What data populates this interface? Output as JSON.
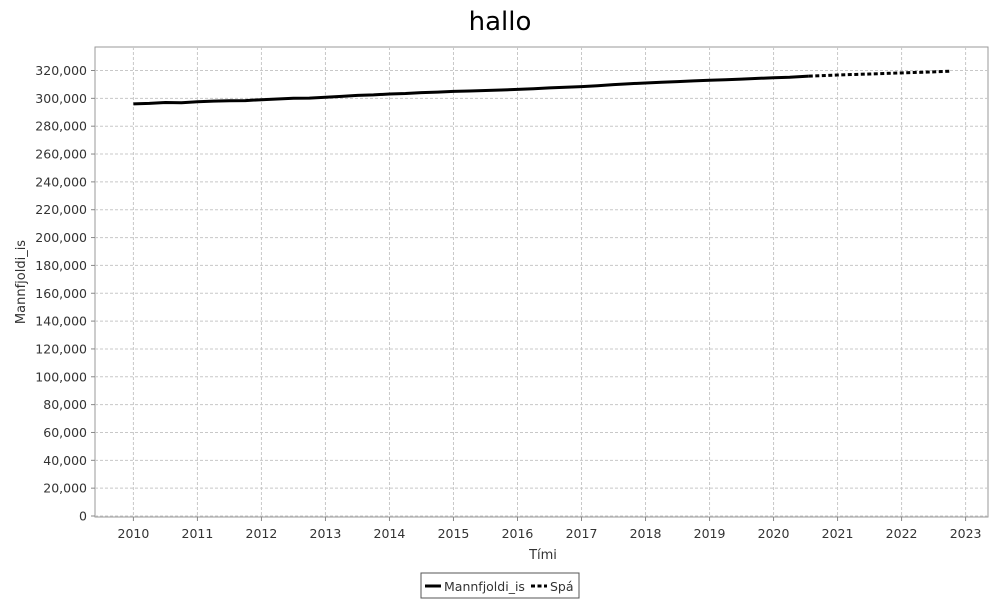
{
  "chart_data": {
    "type": "line",
    "title": "hallo",
    "xlabel": "Tími",
    "ylabel": "Mannfjoldi_is",
    "xlim": [
      2009.4,
      2023.35
    ],
    "ylim": [
      0,
      330000
    ],
    "x_ticks": [
      "2010",
      "2011",
      "2012",
      "2013",
      "2014",
      "2015",
      "2016",
      "2017",
      "2018",
      "2019",
      "2020",
      "2021",
      "2022",
      "2023"
    ],
    "y_ticks": [
      "0",
      "20,000",
      "40,000",
      "60,000",
      "80,000",
      "100,000",
      "120,000",
      "140,000",
      "160,000",
      "180,000",
      "200,000",
      "220,000",
      "240,000",
      "260,000",
      "280,000",
      "300,000",
      "320,000"
    ],
    "grid": true,
    "legend_position": "bottom",
    "series": [
      {
        "name": "Mannfjoldi_is",
        "style": "solid",
        "color": "#000000",
        "x": [
          2010.0,
          2010.25,
          2010.5,
          2010.75,
          2011.0,
          2011.25,
          2011.5,
          2011.75,
          2012.0,
          2012.25,
          2012.5,
          2012.75,
          2013.0,
          2013.25,
          2013.5,
          2013.75,
          2014.0,
          2014.25,
          2014.5,
          2014.75,
          2015.0,
          2015.25,
          2015.5,
          2015.75,
          2016.0,
          2016.25,
          2016.5,
          2016.75,
          2017.0,
          2017.25,
          2017.5,
          2017.75,
          2018.0,
          2018.25,
          2018.5,
          2018.75,
          2019.0,
          2019.25,
          2019.5,
          2019.75,
          2020.0,
          2020.25,
          2020.55
        ],
        "y": [
          296000,
          296400,
          297000,
          296900,
          297600,
          298000,
          298300,
          298400,
          299000,
          299500,
          300000,
          300200,
          300800,
          301400,
          302100,
          302500,
          303100,
          303500,
          304100,
          304500,
          305000,
          305300,
          305600,
          306000,
          306400,
          306900,
          307500,
          307900,
          308400,
          309100,
          309900,
          310500,
          311000,
          311600,
          312000,
          312500,
          313000,
          313400,
          313800,
          314300,
          314800,
          315200,
          316000
        ]
      },
      {
        "name": "Spá",
        "style": "dashed",
        "color": "#000000",
        "x": [
          2020.55,
          2021.0,
          2021.5,
          2022.0,
          2022.5,
          2022.75
        ],
        "y": [
          316000,
          316800,
          317500,
          318300,
          319000,
          319500
        ]
      }
    ]
  }
}
